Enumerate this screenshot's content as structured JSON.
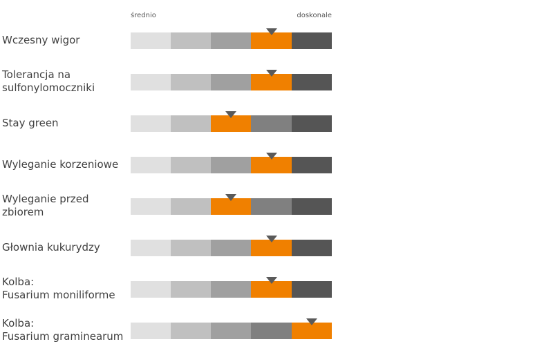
{
  "scale": {
    "low_label": "średnio",
    "high_label": "doskonale"
  },
  "colors": {
    "segments": [
      "#e0e0e0",
      "#c0c0c0",
      "#a0a0a0",
      "#808080",
      "#555555"
    ],
    "highlight": "#f08000",
    "marker": "#5a5a5a"
  },
  "traits": [
    {
      "label": "Wczesny wigor",
      "level": 4
    },
    {
      "label": "Tolerancja na\nsulfonylomoczniki",
      "level": 4
    },
    {
      "label": "Stay green",
      "level": 3
    },
    {
      "label": "Wyleganie korzeniowe",
      "level": 4
    },
    {
      "label": "Wyleganie przed\nzbiorem",
      "level": 3
    },
    {
      "label": "Głownia kukurydzy",
      "level": 4
    },
    {
      "label": "Kolba:\nFusarium moniliforme",
      "level": 4
    },
    {
      "label": "Kolba:\nFusarium graminearum",
      "level": 5
    }
  ]
}
